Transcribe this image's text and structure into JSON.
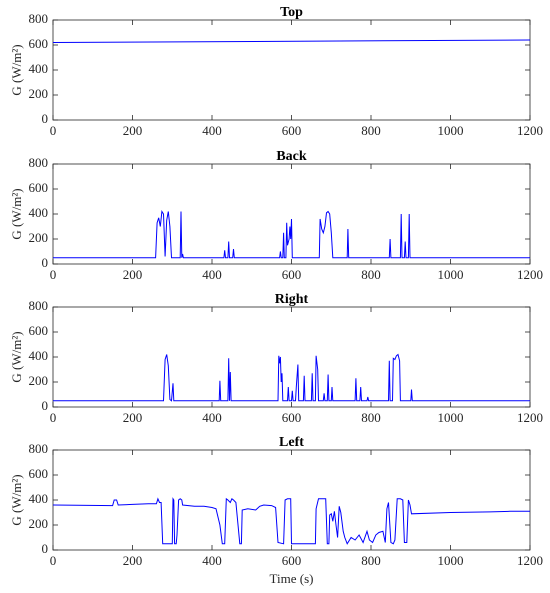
{
  "chart_data": [
    {
      "type": "line",
      "title": "Top",
      "ylabel": "G (W/m²)",
      "color": "#0000ff",
      "x": [
        0,
        1200
      ],
      "values": [
        620,
        640
      ],
      "xlim": [
        0,
        1200
      ],
      "xticks": [
        0,
        200,
        400,
        600,
        800,
        1000,
        1200
      ],
      "ylim": [
        0,
        800
      ],
      "yticks": [
        0,
        200,
        400,
        600,
        800
      ]
    },
    {
      "type": "line",
      "title": "Back",
      "ylabel": "G (W/m²)",
      "color": "#0000ff",
      "x": [
        0,
        258,
        262,
        266,
        270,
        274,
        278,
        282,
        286,
        290,
        294,
        298,
        320,
        322,
        324,
        326,
        328,
        430,
        432,
        434,
        440,
        442,
        444,
        452,
        454,
        456,
        570,
        572,
        574,
        578,
        580,
        582,
        586,
        588,
        590,
        594,
        596,
        598,
        600,
        602,
        670,
        672,
        676,
        680,
        684,
        688,
        692,
        696,
        700,
        704,
        740,
        742,
        744,
        846,
        848,
        850,
        874,
        876,
        878,
        884,
        886,
        888,
        894,
        896,
        898,
        1200
      ],
      "values": [
        50,
        50,
        330,
        370,
        300,
        420,
        400,
        60,
        350,
        420,
        300,
        50,
        50,
        420,
        50,
        80,
        50,
        50,
        110,
        50,
        50,
        180,
        50,
        50,
        120,
        50,
        50,
        100,
        50,
        50,
        250,
        50,
        50,
        330,
        150,
        200,
        300,
        200,
        360,
        50,
        50,
        360,
        280,
        250,
        300,
        410,
        420,
        400,
        250,
        50,
        50,
        280,
        50,
        50,
        200,
        50,
        50,
        400,
        50,
        50,
        180,
        50,
        50,
        400,
        50,
        50
      ],
      "xlim": [
        0,
        1200
      ],
      "xticks": [
        0,
        200,
        400,
        600,
        800,
        1000,
        1200
      ],
      "ylim": [
        0,
        800
      ],
      "yticks": [
        0,
        200,
        400,
        600,
        800
      ]
    },
    {
      "type": "line",
      "title": "Right",
      "ylabel": "G (W/m²)",
      "color": "#0000ff",
      "x": [
        0,
        278,
        282,
        286,
        290,
        294,
        298,
        302,
        304,
        418,
        420,
        422,
        440,
        442,
        444,
        446,
        448,
        566,
        568,
        570,
        572,
        574,
        576,
        578,
        590,
        592,
        594,
        600,
        602,
        604,
        610,
        612,
        616,
        618,
        630,
        632,
        634,
        650,
        652,
        654,
        660,
        662,
        666,
        668,
        680,
        682,
        684,
        690,
        692,
        694,
        700,
        702,
        704,
        760,
        762,
        764,
        772,
        774,
        776,
        790,
        792,
        794,
        844,
        846,
        848,
        854,
        856,
        860,
        864,
        868,
        872,
        874,
        900,
        902,
        904,
        1200
      ],
      "values": [
        50,
        50,
        380,
        420,
        330,
        60,
        50,
        190,
        50,
        50,
        210,
        50,
        50,
        390,
        50,
        280,
        50,
        50,
        410,
        350,
        400,
        200,
        270,
        50,
        50,
        160,
        50,
        50,
        130,
        50,
        50,
        160,
        340,
        50,
        50,
        250,
        50,
        50,
        270,
        50,
        50,
        410,
        300,
        50,
        50,
        110,
        50,
        50,
        260,
        50,
        50,
        160,
        50,
        50,
        230,
        50,
        50,
        160,
        50,
        50,
        80,
        50,
        50,
        370,
        50,
        50,
        390,
        380,
        410,
        420,
        370,
        50,
        50,
        140,
        50,
        50
      ],
      "xlim": [
        0,
        1200
      ],
      "xticks": [
        0,
        200,
        400,
        600,
        800,
        1000,
        1200
      ],
      "ylim": [
        0,
        800
      ],
      "yticks": [
        0,
        200,
        400,
        600,
        800
      ]
    },
    {
      "type": "line",
      "title": "Left",
      "ylabel": "G (W/m²)",
      "xlabel": "Time (s)",
      "color": "#0000ff",
      "x": [
        0,
        150,
        154,
        160,
        164,
        200,
        240,
        260,
        264,
        268,
        272,
        276,
        300,
        302,
        304,
        306,
        310,
        312,
        316,
        320,
        324,
        326,
        356,
        380,
        400,
        410,
        420,
        426,
        432,
        436,
        440,
        446,
        450,
        454,
        460,
        470,
        474,
        476,
        490,
        510,
        520,
        530,
        550,
        560,
        566,
        580,
        584,
        590,
        598,
        600,
        640,
        660,
        662,
        668,
        680,
        686,
        690,
        694,
        696,
        700,
        704,
        708,
        712,
        716,
        720,
        724,
        730,
        734,
        740,
        750,
        760,
        770,
        780,
        790,
        796,
        804,
        812,
        820,
        830,
        836,
        840,
        844,
        850,
        856,
        860,
        866,
        874,
        880,
        884,
        890,
        894,
        898,
        902,
        1000,
        1100,
        1150,
        1200
      ],
      "values": [
        360,
        355,
        400,
        400,
        360,
        365,
        370,
        370,
        410,
        380,
        380,
        50,
        50,
        410,
        400,
        50,
        50,
        120,
        400,
        410,
        400,
        360,
        350,
        350,
        340,
        330,
        200,
        50,
        50,
        410,
        400,
        380,
        410,
        400,
        380,
        50,
        50,
        320,
        330,
        320,
        350,
        360,
        355,
        340,
        60,
        50,
        400,
        410,
        410,
        50,
        50,
        50,
        330,
        410,
        410,
        410,
        50,
        50,
        280,
        290,
        230,
        310,
        200,
        100,
        350,
        300,
        150,
        100,
        50,
        100,
        80,
        120,
        60,
        150,
        80,
        60,
        120,
        140,
        150,
        60,
        330,
        380,
        60,
        50,
        80,
        410,
        410,
        400,
        60,
        60,
        400,
        360,
        290,
        300,
        305,
        310,
        310
      ],
      "xlim": [
        0,
        1200
      ],
      "xticks": [
        0,
        200,
        400,
        600,
        800,
        1000,
        1200
      ],
      "ylim": [
        0,
        800
      ],
      "yticks": [
        0,
        200,
        400,
        600,
        800
      ]
    }
  ]
}
